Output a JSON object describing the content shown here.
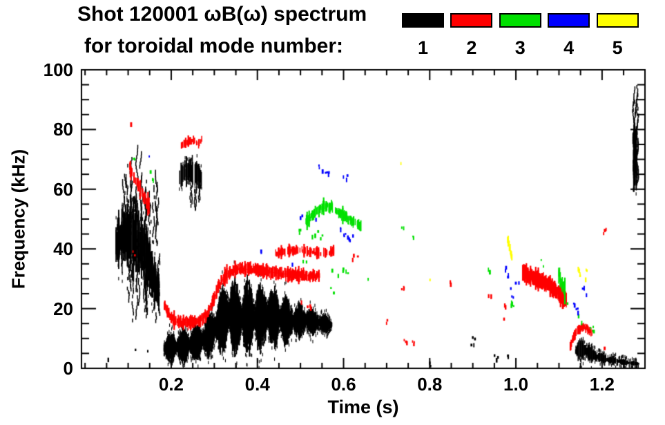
{
  "header": {
    "title": "Shot 120001 ωB(ω) spectrum",
    "subtitle": "for toroidal mode number:"
  },
  "legend": {
    "items": [
      {
        "label": "1",
        "color": "#000000"
      },
      {
        "label": "2",
        "color": "#ff0000"
      },
      {
        "label": "3",
        "color": "#00e000"
      },
      {
        "label": "4",
        "color": "#0000ff"
      },
      {
        "label": "5",
        "color": "#ffff00"
      }
    ]
  },
  "chart_data": {
    "type": "scatter",
    "title": "Shot 120001 ωB(ω) spectrum",
    "subtitle": "for toroidal mode number:",
    "xlabel": "Time (s)",
    "ylabel": "Frequency (kHz)",
    "xlim": [
      -0.0083,
      1.2996
    ],
    "ylim": [
      0,
      100
    ],
    "grid": false,
    "legend_position": "top-right",
    "xticks": {
      "major": [
        0.2,
        0.4,
        0.6,
        0.8,
        1.0,
        1.2
      ],
      "labels": [
        "0.2",
        "0.4",
        "0.6",
        "0.8",
        "1.0",
        "1.2"
      ],
      "minor_step": 0.05
    },
    "yticks": {
      "major": [
        0,
        20,
        40,
        60,
        80,
        100
      ],
      "labels": [
        "0",
        "20",
        "40",
        "60",
        "80",
        "100"
      ],
      "minor_step": 5
    },
    "modes": [
      {
        "n": 1,
        "color_name": "black"
      },
      {
        "n": 2,
        "color_name": "red"
      },
      {
        "n": 3,
        "color_name": "green"
      },
      {
        "n": 4,
        "color_name": "blue"
      },
      {
        "n": 5,
        "color_name": "yellow"
      }
    ],
    "features": [
      {
        "name": "startup-burst-core",
        "mode": 1,
        "kind": "band",
        "texture": "streak",
        "density": 0.8,
        "passes": 2,
        "points": [
          [
            0.072,
            42,
            7
          ],
          [
            0.085,
            44,
            9
          ],
          [
            0.1,
            45,
            11
          ],
          [
            0.115,
            43,
            11
          ],
          [
            0.13,
            41,
            9
          ],
          [
            0.145,
            37,
            8
          ],
          [
            0.158,
            30,
            7
          ],
          [
            0.172,
            25,
            5
          ]
        ]
      },
      {
        "name": "startup-burst-upper-streaks",
        "mode": 1,
        "kind": "vstreaks",
        "t": [
          0.088,
          0.168
        ],
        "base": [
          40,
          50
        ],
        "top": [
          55,
          75
        ],
        "count": 26
      },
      {
        "name": "startup-burst-lower-streaks",
        "mode": 1,
        "kind": "vstreaks",
        "t": [
          0.095,
          0.178
        ],
        "base": [
          16,
          26
        ],
        "top": [
          30,
          42
        ],
        "count": 20
      },
      {
        "name": "early-66khz-cluster",
        "mode": 1,
        "kind": "band",
        "texture": "streak",
        "density": 0.75,
        "points": [
          [
            0.219,
            64,
            3.5
          ],
          [
            0.232,
            66,
            4.5
          ],
          [
            0.246,
            66,
            4.5
          ],
          [
            0.259,
            65,
            4
          ],
          [
            0.272,
            63.5,
            3
          ]
        ]
      },
      {
        "name": "early-66khz-cluster-tails",
        "mode": 1,
        "kind": "vstreaks",
        "t": [
          0.222,
          0.268
        ],
        "base": [
          53,
          58
        ],
        "top": [
          60,
          64
        ],
        "count": 7
      },
      {
        "name": "main-low-frequency-band",
        "mode": 1,
        "kind": "band",
        "texture": "blob",
        "density": 0.96,
        "passes": 2,
        "lump": 0.03,
        "points": [
          [
            0.183,
            6.5,
            3
          ],
          [
            0.2,
            7,
            3.5
          ],
          [
            0.225,
            7.5,
            4
          ],
          [
            0.25,
            8,
            4.5
          ],
          [
            0.275,
            9.5,
            4.5
          ],
          [
            0.295,
            12,
            5.5
          ],
          [
            0.315,
            15.5,
            7.5
          ],
          [
            0.335,
            18.5,
            9
          ],
          [
            0.355,
            16.5,
            8.5
          ],
          [
            0.375,
            17.5,
            9
          ],
          [
            0.4,
            17,
            8.5
          ],
          [
            0.425,
            17.5,
            8
          ],
          [
            0.45,
            16.5,
            7
          ],
          [
            0.475,
            15.5,
            5
          ],
          [
            0.5,
            16,
            4
          ],
          [
            0.525,
            15.8,
            3.2
          ],
          [
            0.55,
            15.2,
            2.6
          ],
          [
            0.572,
            14.5,
            1.8
          ]
        ]
      },
      {
        "name": "late-low-frequency-cluster",
        "mode": 1,
        "kind": "band",
        "texture": "blob",
        "density": 0.92,
        "lump": 0.025,
        "points": [
          [
            1.138,
            5.5,
            2.2
          ],
          [
            1.155,
            6.5,
            3
          ],
          [
            1.172,
            5,
            2.2
          ],
          [
            1.19,
            4,
            1.6
          ],
          [
            1.21,
            3,
            1.2
          ],
          [
            1.235,
            2.5,
            1
          ],
          [
            1.262,
            1.8,
            0.7
          ],
          [
            1.285,
            1.5,
            0.5
          ]
        ]
      },
      {
        "name": "end-high-frequency-streak",
        "mode": 1,
        "kind": "band",
        "texture": "streak",
        "density": 0.85,
        "passes": 2,
        "points": [
          [
            1.273,
            70,
            9
          ],
          [
            1.277,
            71,
            10
          ],
          [
            1.281,
            69,
            8
          ]
        ]
      },
      {
        "name": "end-high-frequency-streak-tails",
        "mode": 1,
        "kind": "vstreaks",
        "t": [
          1.271,
          1.283
        ],
        "base": [
          57,
          64
        ],
        "top": [
          76,
          95
        ],
        "count": 9
      },
      {
        "name": "black-specks",
        "mode": 1,
        "kind": "specks",
        "points": [
          [
            0.051,
            3
          ],
          [
            0.115,
            5.8
          ],
          [
            0.143,
            6
          ],
          [
            0.8,
            1.4
          ],
          [
            0.9,
            8.5
          ],
          [
            0.902,
            10
          ],
          [
            0.954,
            3.5
          ],
          [
            0.985,
            4.2
          ]
        ]
      },
      {
        "name": "startup-red-trace",
        "mode": 2,
        "kind": "trace",
        "hw": 2,
        "density": 0.6,
        "points": [
          [
            0.104,
            67
          ],
          [
            0.112,
            64.5
          ],
          [
            0.121,
            62
          ],
          [
            0.131,
            59
          ],
          [
            0.141,
            56.5
          ],
          [
            0.15,
            54
          ]
        ]
      },
      {
        "name": "red-specks-early",
        "mode": 2,
        "kind": "specks",
        "points": [
          [
            0.107,
            81.3
          ],
          [
            0.112,
            38.5
          ]
        ]
      },
      {
        "name": "red-75khz-marks",
        "mode": 2,
        "kind": "trace",
        "hw": 1.1,
        "density": 0.5,
        "points": [
          [
            0.224,
            74.3
          ],
          [
            0.237,
            76
          ],
          [
            0.251,
            76.5
          ],
          [
            0.264,
            75
          ],
          [
            0.272,
            77
          ]
        ]
      },
      {
        "name": "n2-rising-trace",
        "mode": 2,
        "kind": "trace",
        "hw": 1.5,
        "density": 0.85,
        "line": true,
        "points": [
          [
            0.184,
            21.5
          ],
          [
            0.196,
            17.5
          ],
          [
            0.212,
            15.5
          ],
          [
            0.24,
            15.3
          ],
          [
            0.263,
            15.6
          ],
          [
            0.282,
            18
          ],
          [
            0.298,
            23
          ],
          [
            0.312,
            28
          ],
          [
            0.328,
            31.5
          ],
          [
            0.35,
            33.3
          ],
          [
            0.385,
            33.2
          ],
          [
            0.42,
            32.5
          ],
          [
            0.455,
            31.7
          ],
          [
            0.49,
            31.3
          ],
          [
            0.52,
            31
          ],
          [
            0.545,
            30.8
          ]
        ]
      },
      {
        "name": "n2-upper-trace",
        "mode": 2,
        "kind": "trace",
        "hw": 1.1,
        "density": 0.55,
        "points": [
          [
            0.44,
            38.3
          ],
          [
            0.468,
            39.4
          ],
          [
            0.495,
            39.7
          ],
          [
            0.522,
            39.1
          ],
          [
            0.548,
            38.5
          ],
          [
            0.565,
            38.8
          ],
          [
            0.578,
            39.6
          ]
        ]
      },
      {
        "name": "red-scattered-specks",
        "mode": 2,
        "kind": "specks",
        "points": [
          [
            0.503,
            22.7
          ],
          [
            0.52,
            21
          ],
          [
            0.62,
            37.3
          ],
          [
            0.635,
            36.8
          ],
          [
            0.702,
            15.3
          ],
          [
            0.739,
            26.4
          ],
          [
            0.744,
            9.3
          ],
          [
            0.762,
            8.8
          ],
          [
            0.85,
            28.5
          ],
          [
            0.94,
            24.8
          ],
          [
            0.973,
            16
          ],
          [
            0.975,
            20.5
          ],
          [
            1.206,
            45.8
          ],
          [
            1.209,
            6.9
          ]
        ]
      },
      {
        "name": "n2-late-descending-trace",
        "mode": 2,
        "kind": "trace",
        "hw": 1.8,
        "density": 0.95,
        "passes": 2,
        "points": [
          [
            1.016,
            32
          ],
          [
            1.035,
            30.8
          ],
          [
            1.06,
            29.3
          ],
          [
            1.082,
            27.3
          ],
          [
            1.1,
            25
          ],
          [
            1.117,
            22.8
          ]
        ]
      },
      {
        "name": "n2-end-arc",
        "mode": 2,
        "kind": "trace",
        "hw": 1.1,
        "density": 0.8,
        "points": [
          [
            1.125,
            7
          ],
          [
            1.134,
            10.5
          ],
          [
            1.144,
            12.8
          ],
          [
            1.156,
            13.9
          ],
          [
            1.168,
            13.1
          ],
          [
            1.177,
            11.8
          ]
        ]
      },
      {
        "name": "n3-52khz-arc",
        "mode": 3,
        "kind": "trace",
        "hw": 1.4,
        "density": 0.7,
        "points": [
          [
            0.513,
            49
          ],
          [
            0.533,
            52
          ],
          [
            0.553,
            54.3
          ],
          [
            0.572,
            54.2
          ],
          [
            0.592,
            52
          ],
          [
            0.612,
            50
          ],
          [
            0.63,
            48.5
          ],
          [
            0.641,
            47.3
          ]
        ]
      },
      {
        "name": "n3-late-mini-cluster",
        "mode": 3,
        "kind": "trace",
        "hw": 2,
        "density": 0.85,
        "points": [
          [
            1.098,
            32
          ],
          [
            1.104,
            29.5
          ],
          [
            1.109,
            27.5
          ],
          [
            1.114,
            25.8
          ]
        ]
      },
      {
        "name": "green-specks",
        "mode": 3,
        "kind": "specks",
        "points": [
          [
            0.115,
            70.6
          ],
          [
            0.151,
            65.5
          ],
          [
            0.16,
            63.7
          ],
          [
            0.5,
            45.8
          ],
          [
            0.51,
            35.4
          ],
          [
            0.53,
            44.5
          ],
          [
            0.541,
            45.8
          ],
          [
            0.547,
            43.8
          ],
          [
            0.572,
            32.8
          ],
          [
            0.574,
            26
          ],
          [
            0.585,
            31.5
          ],
          [
            0.597,
            33
          ],
          [
            0.606,
            32
          ],
          [
            0.656,
            29.2
          ],
          [
            0.737,
            47.7
          ],
          [
            0.76,
            44
          ],
          [
            0.938,
            32.6
          ],
          [
            0.989,
            22
          ],
          [
            0.996,
            20.5
          ],
          [
            1.058,
            36.5
          ],
          [
            1.062,
            34.5
          ],
          [
            1.118,
            21
          ],
          [
            1.145,
            18
          ],
          [
            1.15,
            16
          ],
          [
            1.177,
            13.5
          ],
          [
            1.18,
            12.7
          ]
        ]
      },
      {
        "name": "blue-specks",
        "mode": 4,
        "kind": "specks",
        "points": [
          [
            0.147,
            70.8
          ],
          [
            0.412,
            39
          ],
          [
            0.482,
            34.5
          ],
          [
            0.5,
            50.4
          ],
          [
            0.536,
            50.2
          ],
          [
            0.54,
            67.8
          ],
          [
            0.548,
            66.9
          ],
          [
            0.56,
            65.3
          ],
          [
            0.568,
            65.6
          ],
          [
            0.592,
            46.8
          ],
          [
            0.6,
            65
          ],
          [
            0.602,
            45
          ],
          [
            0.607,
            63.9
          ],
          [
            0.609,
            43.5
          ],
          [
            0.612,
            43.1
          ],
          [
            0.618,
            44.2
          ],
          [
            0.978,
            33.6
          ],
          [
            0.984,
            31.3
          ],
          [
            0.986,
            26.2
          ],
          [
            0.992,
            24.3
          ],
          [
            1.003,
            28.8
          ],
          [
            1.138,
            21.8
          ],
          [
            1.142,
            19.4
          ],
          [
            1.158,
            26.9
          ],
          [
            1.163,
            24.6
          ]
        ]
      },
      {
        "name": "yellow-specks",
        "mode": 5,
        "kind": "specks",
        "points": [
          [
            0.735,
            68.3
          ],
          [
            0.803,
            30.3
          ],
          [
            1.146,
            32.9
          ],
          [
            1.152,
            31
          ],
          [
            1.16,
            30.2
          ],
          [
            1.166,
            33.4
          ]
        ]
      },
      {
        "name": "n5-streak",
        "mode": 5,
        "kind": "trace",
        "hw": 1.3,
        "density": 0.9,
        "points": [
          [
            0.981,
            43.3
          ],
          [
            0.985,
            41
          ],
          [
            0.989,
            38.5
          ],
          [
            0.991,
            37
          ]
        ]
      }
    ]
  }
}
